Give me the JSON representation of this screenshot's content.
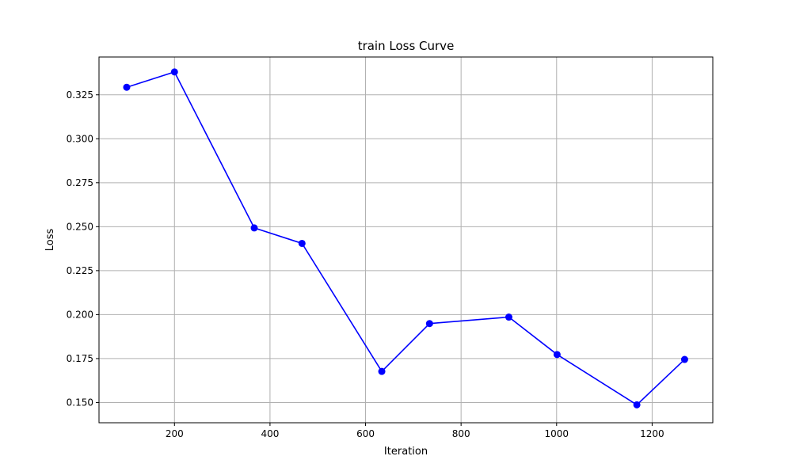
{
  "chart_data": {
    "type": "line",
    "title": "train Loss Curve",
    "xlabel": "Iteration",
    "ylabel": "Loss",
    "xlim": [
      42,
      1327
    ],
    "ylim": [
      0.1385,
      0.3465
    ],
    "xticks": [
      200,
      400,
      600,
      800,
      1000,
      1200
    ],
    "xtick_labels": [
      "200",
      "400",
      "600",
      "800",
      "1000",
      "1200"
    ],
    "yticks": [
      0.15,
      0.175,
      0.2,
      0.225,
      0.25,
      0.275,
      0.3,
      0.325
    ],
    "ytick_labels": [
      "0.150",
      "0.175",
      "0.200",
      "0.225",
      "0.250",
      "0.275",
      "0.300",
      "0.325"
    ],
    "grid": true,
    "series": [
      {
        "color": "#0000ff",
        "marker": "circle",
        "x": [
          100,
          200,
          367,
          467,
          634,
          734,
          900,
          1001,
          1168,
          1268
        ],
        "y": [
          0.3293,
          0.338,
          0.2493,
          0.2405,
          0.1677,
          0.1949,
          0.1986,
          0.1773,
          0.1487,
          0.1745
        ]
      }
    ]
  }
}
